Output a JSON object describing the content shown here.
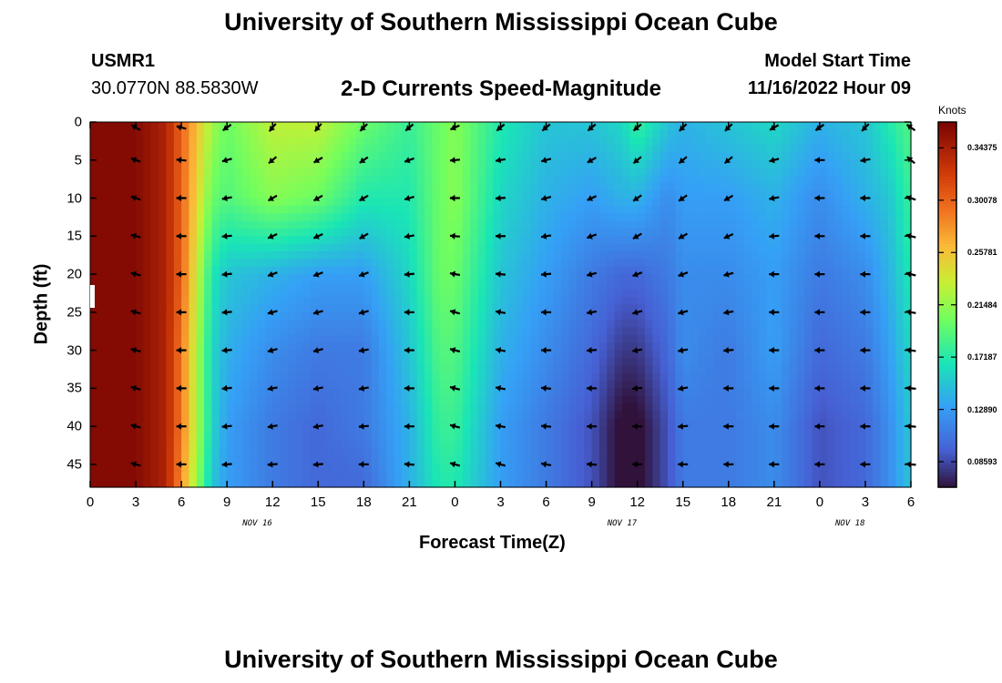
{
  "header": {
    "title_top": "University of Southern Mississippi Ocean Cube",
    "station": "USMR1",
    "coords": "30.0770N  88.5830W",
    "plot_title": "2-D Currents Speed-Magnitude",
    "model_label": "Model Start Time",
    "model_time": "11/16/2022 Hour 09",
    "title_bottom": "University of Southern Mississippi Ocean Cube"
  },
  "chart_data": {
    "type": "heatmap",
    "title": "2-D Currents Speed-Magnitude",
    "xlabel": "Forecast Time(Z)",
    "ylabel": "Depth (ft)",
    "x_tick_labels": [
      "0",
      "3",
      "6",
      "9",
      "12",
      "15",
      "18",
      "21",
      "0",
      "3",
      "6",
      "9",
      "12",
      "15",
      "18",
      "21",
      "0",
      "3",
      "6"
    ],
    "day_labels": [
      {
        "label": "NOV 16",
        "at_hour": 11
      },
      {
        "label": "NOV 17",
        "at_hour": 35
      },
      {
        "label": "NOV 18",
        "at_hour": 50
      }
    ],
    "y_ticks": [
      0,
      5,
      10,
      15,
      20,
      25,
      30,
      35,
      40,
      45
    ],
    "xlim": [
      0,
      54
    ],
    "ylim": [
      48,
      0
    ],
    "colorbar": {
      "unit": "Knots",
      "labels": [
        "0.34375",
        "0.30078",
        "0.25781",
        "0.21484",
        "0.17187",
        "0.12890",
        "0.08593"
      ],
      "range": [
        0.065,
        0.365
      ]
    },
    "speed_field_knots": {
      "hours": [
        0,
        3,
        5,
        6,
        8,
        9,
        12,
        15,
        18,
        21,
        23,
        24,
        27,
        30,
        33,
        35,
        36,
        38,
        39,
        42,
        45,
        48,
        51,
        52.5,
        54
      ],
      "depths": [
        0,
        10,
        20,
        30,
        40,
        48
      ],
      "rows": [
        [
          0.36,
          0.36,
          0.34,
          0.3,
          0.22,
          0.2,
          0.23,
          0.23,
          0.2,
          0.18,
          0.2,
          0.21,
          0.17,
          0.15,
          0.15,
          0.16,
          0.18,
          0.15,
          0.14,
          0.15,
          0.16,
          0.14,
          0.15,
          0.17,
          0.19
        ],
        [
          0.36,
          0.36,
          0.34,
          0.3,
          0.2,
          0.19,
          0.21,
          0.2,
          0.17,
          0.17,
          0.2,
          0.21,
          0.16,
          0.14,
          0.13,
          0.14,
          0.14,
          0.12,
          0.13,
          0.13,
          0.14,
          0.12,
          0.14,
          0.15,
          0.18
        ],
        [
          0.36,
          0.36,
          0.34,
          0.3,
          0.17,
          0.15,
          0.14,
          0.13,
          0.13,
          0.16,
          0.2,
          0.2,
          0.15,
          0.13,
          0.11,
          0.1,
          0.1,
          0.11,
          0.12,
          0.12,
          0.13,
          0.11,
          0.12,
          0.14,
          0.17
        ],
        [
          0.36,
          0.36,
          0.34,
          0.29,
          0.16,
          0.14,
          0.12,
          0.11,
          0.11,
          0.15,
          0.19,
          0.19,
          0.14,
          0.12,
          0.1,
          0.08,
          0.08,
          0.1,
          0.12,
          0.11,
          0.13,
          0.1,
          0.11,
          0.13,
          0.16
        ],
        [
          0.36,
          0.36,
          0.34,
          0.29,
          0.16,
          0.13,
          0.11,
          0.1,
          0.11,
          0.14,
          0.18,
          0.18,
          0.13,
          0.11,
          0.09,
          0.06,
          0.06,
          0.09,
          0.11,
          0.11,
          0.12,
          0.09,
          0.1,
          0.12,
          0.15
        ],
        [
          0.36,
          0.36,
          0.34,
          0.28,
          0.15,
          0.13,
          0.11,
          0.1,
          0.1,
          0.14,
          0.17,
          0.17,
          0.13,
          0.11,
          0.09,
          0.06,
          0.06,
          0.09,
          0.11,
          0.11,
          0.12,
          0.09,
          0.1,
          0.12,
          0.15
        ]
      ]
    },
    "direction_field_deg": {
      "note": "vector arrows pointing toward; 0 = +x(east), clockwise positive",
      "hours": [
        3,
        6,
        9,
        12,
        15,
        18,
        21,
        24,
        27,
        30,
        33,
        36,
        39,
        42,
        45,
        48,
        51,
        54
      ],
      "depths": [
        0,
        5,
        10,
        15,
        20,
        25,
        30,
        35,
        40,
        45
      ],
      "angles": [
        [
          210,
          195,
          145,
          130,
          130,
          135,
          140,
          155,
          140,
          140,
          140,
          140,
          135,
          135,
          150,
          145,
          135,
          215
        ],
        [
          200,
          185,
          165,
          140,
          150,
          145,
          160,
          175,
          170,
          165,
          150,
          140,
          140,
          140,
          165,
          180,
          170,
          220
        ],
        [
          200,
          180,
          170,
          150,
          150,
          150,
          165,
          180,
          175,
          165,
          155,
          145,
          145,
          150,
          170,
          180,
          180,
          200
        ],
        [
          195,
          180,
          175,
          155,
          155,
          150,
          170,
          185,
          180,
          170,
          160,
          150,
          150,
          155,
          175,
          180,
          180,
          195
        ],
        [
          195,
          180,
          175,
          160,
          160,
          160,
          175,
          190,
          185,
          175,
          165,
          160,
          160,
          165,
          180,
          180,
          180,
          195
        ],
        [
          195,
          180,
          175,
          165,
          165,
          165,
          180,
          195,
          190,
          180,
          170,
          165,
          165,
          170,
          180,
          180,
          180,
          190
        ],
        [
          195,
          180,
          175,
          165,
          165,
          170,
          180,
          195,
          190,
          180,
          175,
          170,
          170,
          175,
          180,
          180,
          180,
          190
        ],
        [
          195,
          180,
          175,
          170,
          170,
          170,
          180,
          195,
          190,
          185,
          180,
          175,
          170,
          180,
          180,
          180,
          180,
          185
        ],
        [
          195,
          180,
          175,
          170,
          170,
          175,
          180,
          195,
          190,
          185,
          180,
          180,
          175,
          180,
          180,
          180,
          180,
          185
        ],
        [
          195,
          180,
          175,
          175,
          175,
          180,
          185,
          195,
          195,
          190,
          185,
          180,
          180,
          180,
          180,
          180,
          180,
          185
        ]
      ]
    }
  }
}
